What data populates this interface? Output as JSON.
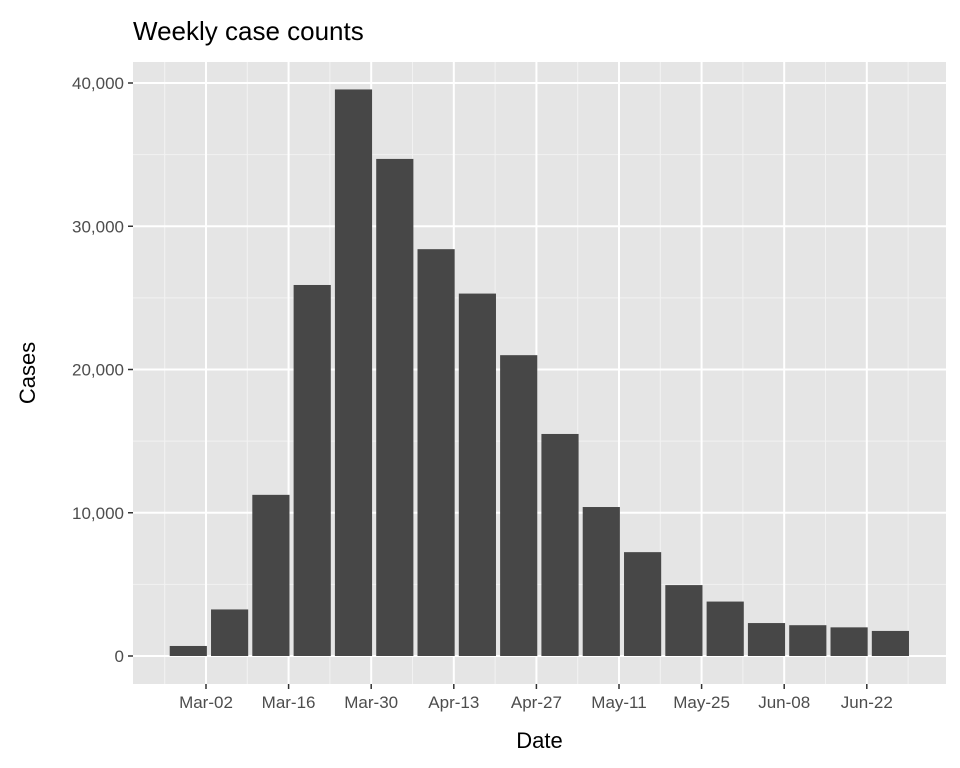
{
  "chart_data": {
    "type": "bar",
    "title": "Weekly case counts",
    "xlabel": "Date",
    "ylabel": "Cases",
    "categories": [
      "Feb-27",
      "Mar-05",
      "Mar-12",
      "Mar-19",
      "Mar-26",
      "Apr-02",
      "Apr-09",
      "Apr-16",
      "Apr-23",
      "Apr-30",
      "May-07",
      "May-14",
      "May-21",
      "May-28",
      "Jun-04",
      "Jun-11",
      "Jun-18",
      "Jun-25"
    ],
    "day_offsets_from_mar02": [
      -3,
      4,
      11,
      18,
      25,
      32,
      39,
      46,
      53,
      60,
      67,
      74,
      81,
      88,
      95,
      102,
      109,
      116
    ],
    "values": [
      700,
      3250,
      11250,
      25900,
      39550,
      34700,
      28400,
      25300,
      21000,
      15500,
      10400,
      7250,
      4950,
      3800,
      2300,
      2150,
      2000,
      1750
    ],
    "ylim": [
      0,
      40000
    ],
    "yticks": [
      0,
      10000,
      20000,
      30000,
      40000
    ],
    "ytick_labels": [
      "0",
      "10,000",
      "20,000",
      "30,000",
      "40,000"
    ],
    "xticks_days": [
      0,
      14,
      28,
      42,
      56,
      70,
      84,
      98,
      112
    ],
    "xtick_labels": [
      "Mar-02",
      "Mar-16",
      "Mar-30",
      "Apr-13",
      "Apr-27",
      "May-11",
      "May-25",
      "Jun-08",
      "Jun-22"
    ],
    "grid": true,
    "bar_color": "#474747",
    "panel_color": "#e5e5e5"
  }
}
